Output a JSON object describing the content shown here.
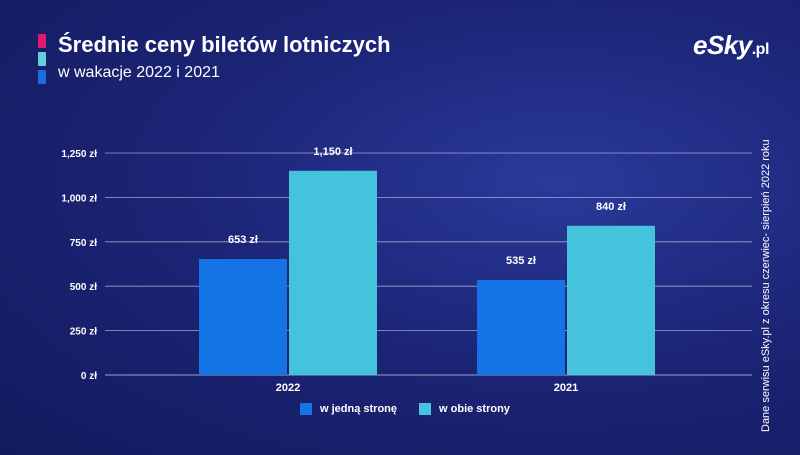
{
  "header": {
    "title": "Średnie ceny biletów lotniczych",
    "subtitle": "w wakacje 2022 i 2021",
    "accent_colors": [
      "#e0196e",
      "#5fd0dc",
      "#1a6ee0"
    ]
  },
  "logo": {
    "brand": "eSky",
    "suffix": ".pl"
  },
  "side_note": "Dane serwisu eSky.pl z okresu czerwiec- sierpień 2022 roku",
  "colors": {
    "series_1": "#1474e6",
    "series_2": "#45c2dc",
    "grid": "#c8cde8"
  },
  "chart_data": {
    "type": "bar",
    "title": "Średnie ceny biletów lotniczych",
    "subtitle": "w wakacje 2022 i 2021",
    "categories": [
      "2022",
      "2021"
    ],
    "series": [
      {
        "name": "w jedną stronę",
        "values": [
          653,
          535
        ],
        "labels": [
          "653 zł",
          "535 zł"
        ]
      },
      {
        "name": "w obie strony",
        "values": [
          1150,
          840
        ],
        "labels": [
          "1,150 zł",
          "840 zł"
        ]
      }
    ],
    "ylim": [
      0,
      1250
    ],
    "yticks": [
      0,
      250,
      500,
      750,
      1000,
      1250
    ],
    "ytick_labels": [
      "0 zł",
      "250 zł",
      "500 zł",
      "750 zł",
      "1,000 zł",
      "1,250 zł"
    ],
    "grid": true,
    "legend_position": "bottom"
  }
}
